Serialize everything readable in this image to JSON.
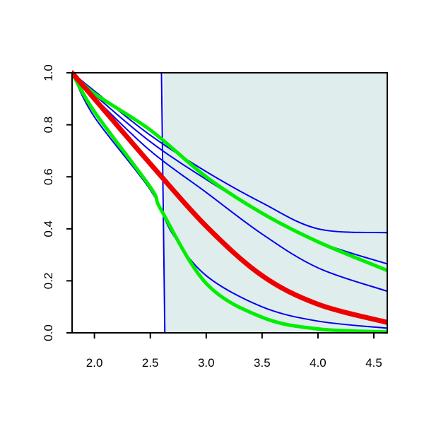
{
  "chart_data": {
    "type": "line",
    "title": "",
    "xlabel": "",
    "ylabel": "",
    "xlim": [
      1.8,
      4.62
    ],
    "ylim": [
      0.0,
      1.0
    ],
    "x_ticks": [
      2.0,
      2.5,
      3.0,
      3.5,
      4.0,
      4.5
    ],
    "x_tick_labels": [
      "2.0",
      "2.5",
      "3.0",
      "3.5",
      "4.0",
      "4.5"
    ],
    "y_ticks": [
      0.0,
      0.2,
      0.4,
      0.6,
      0.8,
      1.0
    ],
    "y_tick_labels": [
      "0.0",
      "0.2",
      "0.4",
      "0.6",
      "0.8",
      "1.0"
    ],
    "grid": false,
    "legend": "none",
    "shaded_region": {
      "x_start": 2.62,
      "x_end": 4.62,
      "y_start": 0.0,
      "y_end": 1.0,
      "color": "#e0eded"
    },
    "series": [
      {
        "color": "#0000ee",
        "width": 2,
        "points": [
          [
            1.8,
            1.0
          ],
          [
            2.0,
            0.93
          ],
          [
            2.5,
            0.76
          ],
          [
            3.0,
            0.62
          ],
          [
            3.5,
            0.5
          ],
          [
            4.0,
            0.4
          ],
          [
            4.62,
            0.385
          ]
        ]
      },
      {
        "color": "#0000ee",
        "width": 2,
        "points": [
          [
            1.8,
            1.0
          ],
          [
            2.0,
            0.916
          ],
          [
            2.5,
            0.735
          ],
          [
            3.0,
            0.59
          ],
          [
            3.5,
            0.46
          ],
          [
            4.0,
            0.35
          ],
          [
            4.62,
            0.265
          ]
        ]
      },
      {
        "color": "#0000ee",
        "width": 2,
        "points": [
          [
            1.8,
            1.0
          ],
          [
            2.0,
            0.905
          ],
          [
            2.5,
            0.7
          ],
          [
            3.0,
            0.54
          ],
          [
            3.5,
            0.38
          ],
          [
            4.0,
            0.25
          ],
          [
            4.62,
            0.16
          ]
        ]
      },
      {
        "color": "#0000ee",
        "width": 2,
        "points": [
          [
            1.8,
            1.0
          ],
          [
            2.0,
            0.83
          ],
          [
            2.5,
            0.55
          ],
          [
            2.7,
            0.38
          ],
          [
            3.0,
            0.22
          ],
          [
            3.5,
            0.1
          ],
          [
            4.0,
            0.045
          ],
          [
            4.62,
            0.018
          ]
        ]
      },
      {
        "color": "#0000ee",
        "width": 2,
        "points": [
          [
            1.8,
            1.0
          ],
          [
            2.5,
            1.0
          ],
          [
            2.6,
            1.0
          ],
          [
            2.63,
            0.0
          ],
          [
            4.62,
            0.0
          ]
        ]
      },
      {
        "color": "#00ee00",
        "width": 5,
        "points": [
          [
            1.8,
            1.0
          ],
          [
            2.0,
            0.92
          ],
          [
            2.5,
            0.78
          ],
          [
            3.0,
            0.6
          ],
          [
            3.5,
            0.46
          ],
          [
            4.0,
            0.35
          ],
          [
            4.62,
            0.24
          ]
        ]
      },
      {
        "color": "#00ee00",
        "width": 5,
        "points": [
          [
            1.8,
            1.0
          ],
          [
            2.0,
            0.85
          ],
          [
            2.5,
            0.56
          ],
          [
            2.6,
            0.47
          ],
          [
            3.0,
            0.19
          ],
          [
            3.5,
            0.06
          ],
          [
            4.0,
            0.015
          ],
          [
            4.62,
            0.003
          ]
        ]
      },
      {
        "color": "#ee0000",
        "width": 7,
        "points": [
          [
            1.8,
            1.0
          ],
          [
            2.0,
            0.9
          ],
          [
            2.5,
            0.65
          ],
          [
            3.0,
            0.41
          ],
          [
            3.5,
            0.22
          ],
          [
            4.0,
            0.11
          ],
          [
            4.62,
            0.04
          ]
        ]
      }
    ]
  }
}
